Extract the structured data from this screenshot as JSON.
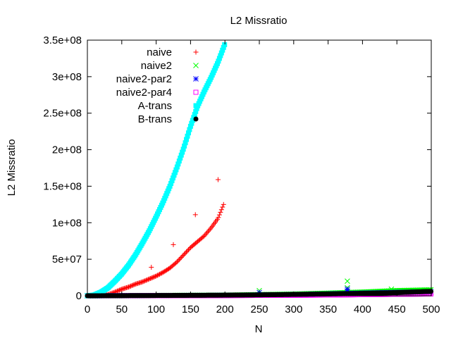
{
  "chart_data": {
    "type": "scatter",
    "title": "L2 Missratio",
    "xlabel": "N",
    "ylabel": "L2 Missratio",
    "xlim": [
      0,
      500
    ],
    "ylim": [
      0,
      350000000
    ],
    "xticks": [
      0,
      50,
      100,
      150,
      200,
      250,
      300,
      350,
      400,
      450,
      500
    ],
    "xtick_labels": [
      "0",
      "50",
      "100",
      "150",
      "200",
      "250",
      "300",
      "350",
      "400",
      "450",
      "500"
    ],
    "yticks": [
      0,
      50000000,
      100000000,
      150000000,
      200000000,
      250000000,
      300000000,
      350000000
    ],
    "ytick_labels": [
      "0",
      "5e+07",
      "1e+08",
      "1.5e+08",
      "2e+08",
      "2.5e+08",
      "3e+08",
      "3.5e+08"
    ],
    "grid": false,
    "legend_position": "top-left",
    "series": [
      {
        "name": "naive",
        "marker": "plus",
        "color": "#ff0000",
        "x": [
          0,
          20,
          30,
          40,
          50,
          60,
          70,
          80,
          90,
          100,
          110,
          120,
          130,
          140,
          150,
          160,
          170,
          180,
          190,
          198
        ],
        "y": [
          0,
          500000,
          1500000,
          5000000,
          9000000,
          12000000,
          16000000,
          19000000,
          23000000,
          27000000,
          32000000,
          38000000,
          46000000,
          56000000,
          66000000,
          74000000,
          82000000,
          93000000,
          106000000,
          125000000
        ],
        "outliers": [
          {
            "x": 93,
            "y": 39000000
          },
          {
            "x": 125,
            "y": 70000000
          },
          {
            "x": 157,
            "y": 111000000
          },
          {
            "x": 190,
            "y": 159000000
          }
        ]
      },
      {
        "name": "naive2",
        "marker": "cross",
        "color": "#00ff00",
        "x": [
          0,
          100,
          200,
          250,
          300,
          350,
          400,
          450,
          500
        ],
        "y": [
          0,
          300000,
          800000,
          1500000,
          2200000,
          3500000,
          5000000,
          7000000,
          8000000
        ],
        "outliers": [
          {
            "x": 250,
            "y": 7000000
          },
          {
            "x": 378,
            "y": 20000000
          },
          {
            "x": 378,
            "y": 11000000
          },
          {
            "x": 442,
            "y": 9000000
          }
        ]
      },
      {
        "name": "naive2-par2",
        "marker": "star",
        "color": "#0000ff",
        "x": [
          0,
          100,
          200,
          250,
          300,
          350,
          400,
          450,
          500
        ],
        "y": [
          0,
          200000,
          500000,
          1000000,
          1500000,
          2500000,
          3500000,
          4500000,
          5500000
        ],
        "outliers": [
          {
            "x": 250,
            "y": 4500000
          },
          {
            "x": 378,
            "y": 9000000
          },
          {
            "x": 378,
            "y": 6500000
          }
        ]
      },
      {
        "name": "naive2-par4",
        "marker": "open-square",
        "color": "#ff00ff",
        "x": [
          0,
          100,
          200,
          250,
          300,
          350,
          400,
          450,
          500
        ],
        "y": [
          0,
          100000,
          300000,
          500000,
          700000,
          1000000,
          1500000,
          2000000,
          2500000
        ],
        "outliers": []
      },
      {
        "name": "A-trans",
        "marker": "filled-square",
        "color": "#00ffff",
        "x": [
          0,
          10,
          20,
          30,
          40,
          50,
          60,
          70,
          80,
          90,
          100,
          110,
          120,
          130,
          140,
          150,
          160,
          170,
          180,
          190,
          200
        ],
        "y": [
          0,
          1000000,
          5000000,
          11000000,
          20000000,
          30000000,
          42000000,
          56000000,
          72000000,
          89000000,
          108000000,
          128000000,
          150000000,
          175000000,
          202000000,
          232000000,
          259000000,
          280000000,
          299000000,
          320000000,
          345000000
        ],
        "outliers": []
      },
      {
        "name": "B-trans",
        "marker": "filled-circle",
        "color": "#000000",
        "x": [
          0,
          100,
          200,
          250,
          300,
          350,
          400,
          450,
          500
        ],
        "y": [
          0,
          300000,
          800000,
          1200000,
          1800000,
          2500000,
          3300000,
          4300000,
          6000000
        ],
        "outliers": []
      }
    ]
  }
}
